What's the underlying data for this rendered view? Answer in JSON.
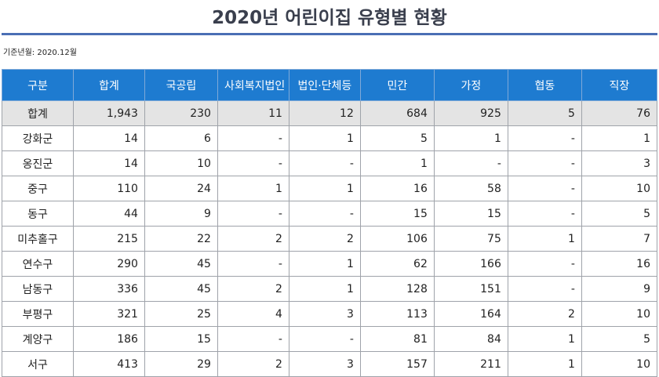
{
  "title": "2020년 어린이집 유형별 현황",
  "basis": "기준년월: 2020.12월",
  "columns": [
    "구분",
    "합계",
    "국공립",
    "사회복지법인",
    "법인·단체등",
    "민간",
    "가정",
    "협동",
    "직장"
  ],
  "rows": [
    [
      "합계",
      "1,943",
      "230",
      "11",
      "12",
      "684",
      "925",
      "5",
      "76"
    ],
    [
      "강화군",
      "14",
      "6",
      "-",
      "1",
      "5",
      "1",
      "-",
      "1"
    ],
    [
      "옹진군",
      "14",
      "10",
      "-",
      "-",
      "1",
      "-",
      "-",
      "3"
    ],
    [
      "중구",
      "110",
      "24",
      "1",
      "1",
      "16",
      "58",
      "-",
      "10"
    ],
    [
      "동구",
      "44",
      "9",
      "-",
      "-",
      "15",
      "15",
      "-",
      "5"
    ],
    [
      "미추홀구",
      "215",
      "22",
      "2",
      "2",
      "106",
      "75",
      "1",
      "7"
    ],
    [
      "연수구",
      "290",
      "45",
      "-",
      "1",
      "62",
      "166",
      "-",
      "16"
    ],
    [
      "남동구",
      "336",
      "45",
      "2",
      "1",
      "128",
      "151",
      "-",
      "9"
    ],
    [
      "부평구",
      "321",
      "25",
      "4",
      "3",
      "113",
      "164",
      "2",
      "10"
    ],
    [
      "계양구",
      "186",
      "15",
      "-",
      "-",
      "81",
      "84",
      "1",
      "5"
    ],
    [
      "서구",
      "413",
      "29",
      "2",
      "3",
      "157",
      "211",
      "1",
      "10"
    ]
  ],
  "colors": {
    "header_bg": "#1e7bd0",
    "title_rule": "#4a6fb4",
    "total_row_bg": "#e4e4e4"
  }
}
